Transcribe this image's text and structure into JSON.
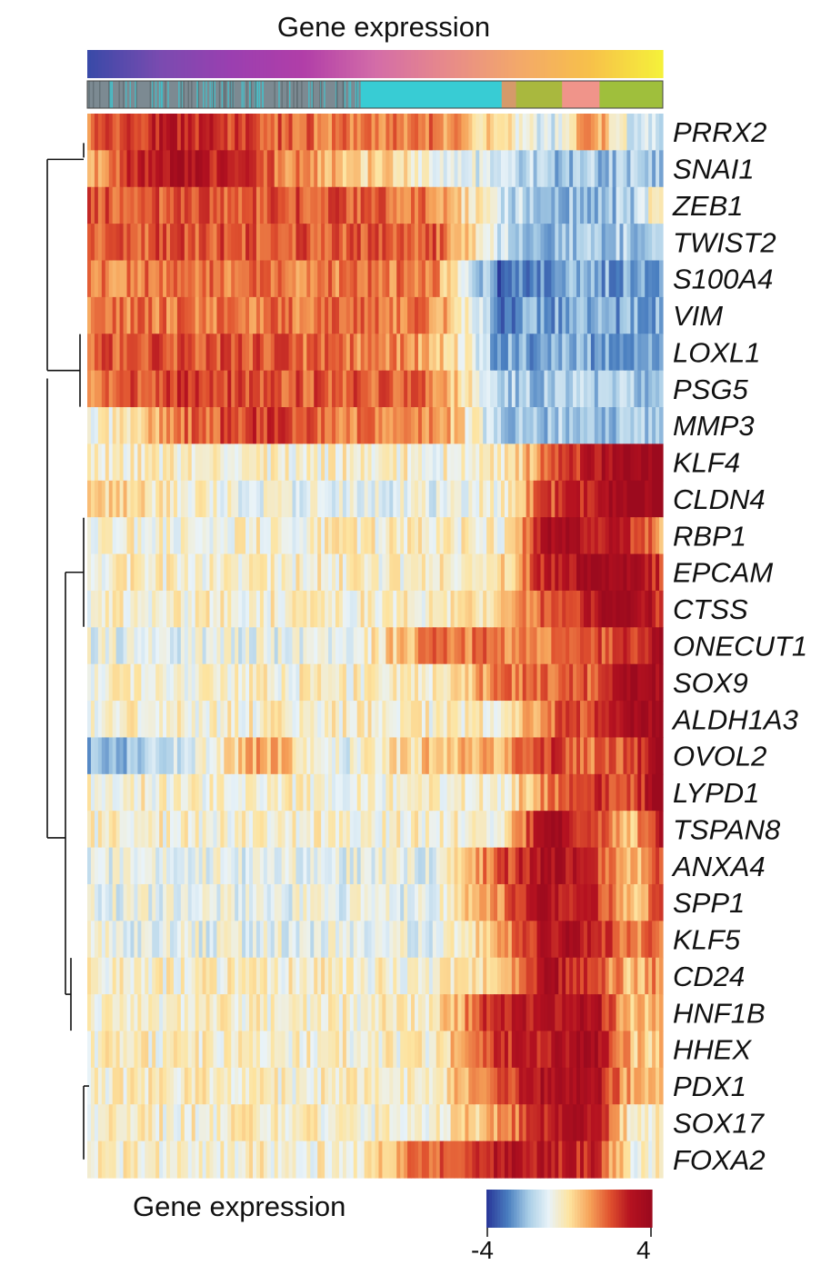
{
  "chart_data": {
    "type": "heatmap",
    "title": "Gene expression",
    "legend": {
      "title": "Gene expression",
      "min_label": "-4",
      "max_label": "4",
      "range": [
        -4,
        4
      ],
      "colors": [
        "#2b3a9a",
        "#4a7fc0",
        "#a8cde6",
        "#e9f3f8",
        "#fde4a0",
        "#f6a35a",
        "#e0522f",
        "#b51220",
        "#9c0a1e"
      ]
    },
    "pseudotime_colors": [
      "#3a4aa8",
      "#7a4bb0",
      "#9b3fb0",
      "#b13ea8",
      "#d36ca8",
      "#e78a8a",
      "#f3a86a",
      "#f7c04a",
      "#f5f03a"
    ],
    "cluster_annotation": [
      {
        "color": "#7c8a92",
        "weight": 0.475
      },
      {
        "color": "#38ccd4",
        "weight": 0.245
      },
      {
        "color": "#d59a6a",
        "weight": 0.025
      },
      {
        "color": "#a9b83e",
        "weight": 0.08
      },
      {
        "color": "#f0948a",
        "weight": 0.065
      },
      {
        "color": "#9fbf3c",
        "weight": 0.11
      }
    ],
    "genes": [
      "PRRX2",
      "SNAI1",
      "ZEB1",
      "TWIST2",
      "S100A4",
      "VIM",
      "LOXL1",
      "PSG5",
      "MMP3",
      "KLF4",
      "CLDN4",
      "RBP1",
      "EPCAM",
      "CTSS",
      "ONECUT1",
      "SOX9",
      "ALDH1A3",
      "OVOL2",
      "LYPD1",
      "TSPAN8",
      "ANXA4",
      "SPP1",
      "KLF5",
      "CD24",
      "HNF1B",
      "HHEX",
      "PDX1",
      "SOX17",
      "FOXA2"
    ],
    "profile_x": [
      0,
      0.15,
      0.3,
      0.45,
      0.6,
      0.72,
      0.8,
      0.88,
      0.95,
      1.0
    ],
    "profiles": [
      [
        1.5,
        3.0,
        2.0,
        1.5,
        1.5,
        0.0,
        -1.5,
        1.5,
        -1.5,
        -1.5
      ],
      [
        1.0,
        3.5,
        2.0,
        0.5,
        -0.5,
        -1.5,
        -2.0,
        -2.0,
        -2.0,
        -2.0
      ],
      [
        2.0,
        2.0,
        2.0,
        2.0,
        1.5,
        -1.5,
        -2.0,
        -2.0,
        -2.0,
        0.5
      ],
      [
        2.0,
        2.0,
        2.0,
        2.0,
        2.0,
        -1.5,
        -2.0,
        -2.0,
        -2.0,
        -1.0
      ],
      [
        1.5,
        1.5,
        1.5,
        1.5,
        1.5,
        -3.5,
        -2.5,
        -2.5,
        -2.5,
        -2.5
      ],
      [
        1.5,
        1.5,
        1.5,
        1.5,
        1.5,
        -3.0,
        -2.5,
        -2.5,
        -2.5,
        -2.5
      ],
      [
        2.0,
        2.0,
        2.0,
        1.5,
        1.0,
        -2.5,
        -2.5,
        -2.5,
        -2.5,
        -2.5
      ],
      [
        1.5,
        2.5,
        2.0,
        2.0,
        1.5,
        -2.0,
        -2.0,
        -2.0,
        -2.0,
        -2.0
      ],
      [
        -1.0,
        1.5,
        2.5,
        1.5,
        1.5,
        -2.0,
        -2.0,
        -2.0,
        -2.0,
        -2.0
      ],
      [
        -0.5,
        -0.5,
        -0.5,
        -0.5,
        -0.5,
        -0.5,
        1.5,
        3.0,
        4.0,
        4.0
      ],
      [
        0.5,
        -0.5,
        -1.0,
        -1.0,
        -1.0,
        -0.5,
        2.0,
        3.0,
        4.0,
        4.0
      ],
      [
        -0.5,
        -0.5,
        -0.5,
        -0.5,
        -0.5,
        -0.5,
        3.5,
        3.0,
        2.5,
        1.0
      ],
      [
        -0.5,
        -0.5,
        -0.5,
        -0.5,
        -0.5,
        0.0,
        3.0,
        3.5,
        3.5,
        2.5
      ],
      [
        -0.5,
        -0.5,
        -0.5,
        -0.5,
        -0.5,
        0.0,
        2.0,
        3.0,
        4.0,
        2.5
      ],
      [
        -1.0,
        -1.0,
        -1.0,
        -1.0,
        1.5,
        1.5,
        1.5,
        2.0,
        2.5,
        3.5
      ],
      [
        -0.5,
        -0.5,
        -0.5,
        -0.5,
        -0.5,
        1.5,
        1.5,
        2.0,
        4.0,
        3.5
      ],
      [
        -0.5,
        -0.5,
        -0.5,
        -0.5,
        -0.5,
        -0.5,
        1.5,
        2.5,
        4.0,
        3.5
      ],
      [
        -2.5,
        -1.5,
        1.0,
        -1.0,
        0.5,
        1.0,
        2.5,
        1.5,
        2.0,
        4.0
      ],
      [
        -0.5,
        -0.5,
        -0.5,
        -0.5,
        -0.5,
        -0.5,
        1.5,
        2.5,
        2.0,
        4.0
      ],
      [
        -0.5,
        -0.5,
        -0.5,
        -0.5,
        -0.5,
        -0.5,
        4.0,
        2.0,
        0.5,
        3.5
      ],
      [
        -1.0,
        -1.0,
        -1.0,
        -1.0,
        -1.0,
        2.0,
        3.5,
        2.5,
        0.5,
        2.5
      ],
      [
        -1.0,
        -1.0,
        -1.0,
        -1.0,
        -1.0,
        1.5,
        3.5,
        2.5,
        0.5,
        2.0
      ],
      [
        -1.0,
        -1.0,
        -1.0,
        -1.0,
        -1.0,
        1.0,
        3.5,
        3.0,
        1.0,
        2.0
      ],
      [
        -0.5,
        -0.5,
        -0.5,
        -0.5,
        -0.5,
        0.0,
        3.5,
        2.0,
        0.5,
        1.5
      ],
      [
        -0.5,
        -0.5,
        -0.5,
        -0.5,
        -0.5,
        3.0,
        3.0,
        3.5,
        0.5,
        0.5
      ],
      [
        -0.5,
        -0.5,
        -0.5,
        -0.5,
        -0.5,
        2.5,
        3.0,
        3.5,
        0.5,
        0.5
      ],
      [
        -0.5,
        -0.5,
        -0.5,
        -0.5,
        -0.5,
        2.0,
        3.5,
        3.5,
        0.5,
        0.5
      ],
      [
        -0.5,
        -0.5,
        -0.5,
        -0.5,
        -0.5,
        1.0,
        3.0,
        3.0,
        -0.5,
        -0.5
      ],
      [
        -0.5,
        -0.5,
        -0.5,
        -0.5,
        2.0,
        3.0,
        3.0,
        2.5,
        -0.5,
        -0.5
      ]
    ]
  }
}
